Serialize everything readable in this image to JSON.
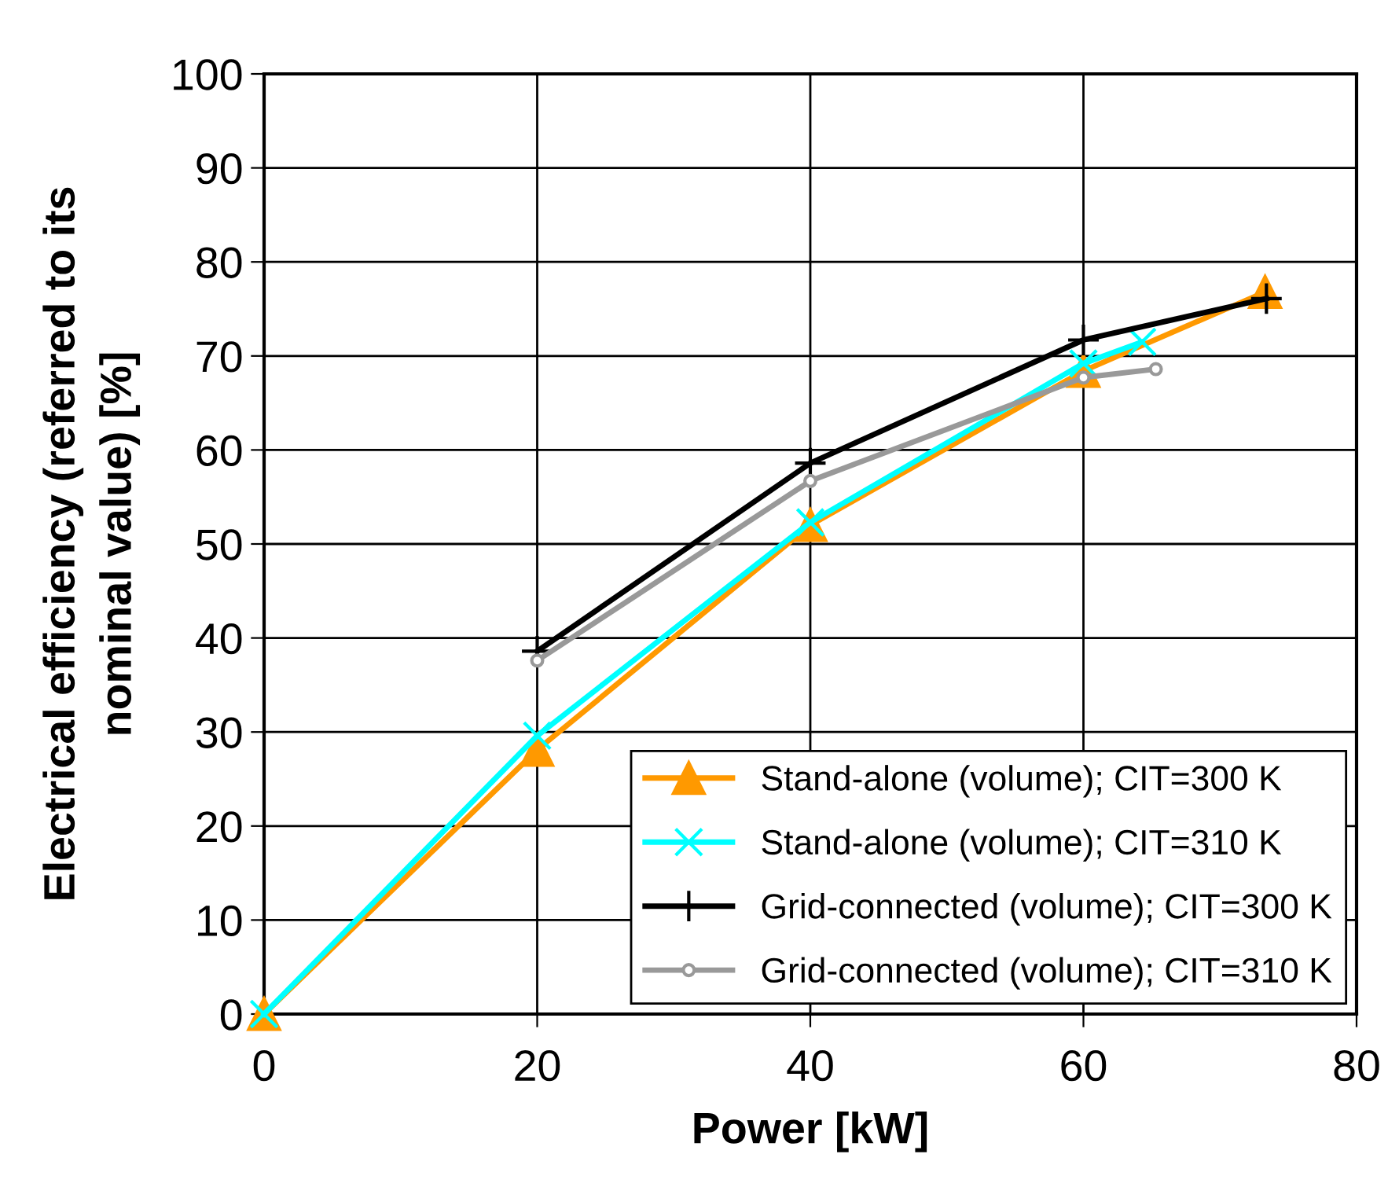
{
  "chart_data": {
    "type": "line",
    "xlabel": "Power [kW]",
    "ylabel": "Electrical efficiency (referred to its\nnominal value) [%]",
    "xlim": [
      0,
      80
    ],
    "xticks": [
      0,
      20,
      40,
      60,
      80
    ],
    "ylim": [
      0,
      100
    ],
    "yticks": [
      0,
      10,
      20,
      30,
      40,
      50,
      60,
      70,
      80,
      90,
      100
    ],
    "grid": true,
    "legend": "bottom right",
    "series": [
      {
        "name": "Stand-alone (volume); CIT=300 K",
        "color": "#ff9900",
        "marker": "triangle",
        "x": [
          0,
          20,
          40,
          60,
          73.3
        ],
        "values": [
          0,
          28.1,
          52.0,
          68.4,
          76.8
        ]
      },
      {
        "name": "Stand-alone (volume); CIT=310 K",
        "color": "#00ffff",
        "marker": "cross",
        "x": [
          0,
          20,
          40,
          60,
          64.3
        ],
        "values": [
          0,
          29.6,
          52.3,
          69.2,
          71.5
        ]
      },
      {
        "name": "Grid-connected (volume); CIT=300 K",
        "color": "#000000",
        "marker": "plus",
        "x": [
          20,
          40,
          60,
          73.4
        ],
        "values": [
          38.6,
          58.6,
          71.7,
          76.1
        ]
      },
      {
        "name": "Grid-connected (volume); CIT=310 K",
        "color": "#999999",
        "marker": "circle",
        "x": [
          20,
          40,
          60,
          65.3
        ],
        "values": [
          37.6,
          56.7,
          67.7,
          68.6
        ]
      }
    ]
  }
}
